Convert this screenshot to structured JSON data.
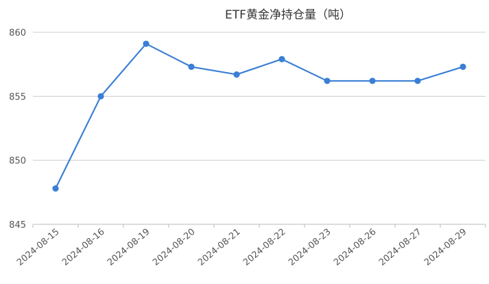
{
  "chart_data": {
    "type": "line",
    "title": "ETF黄金净持仓量（吨）",
    "xlabel": "",
    "ylabel": "",
    "categories": [
      "2024-08-15",
      "2024-08-16",
      "2024-08-19",
      "2024-08-20",
      "2024-08-21",
      "2024-08-22",
      "2024-08-23",
      "2024-08-26",
      "2024-08-27",
      "2024-08-29"
    ],
    "series": [
      {
        "values": [
          847.8,
          855.0,
          859.1,
          857.3,
          856.7,
          857.9,
          856.2,
          856.2,
          856.2,
          857.3
        ]
      }
    ],
    "ylim": [
      845,
      860
    ],
    "yticks": [
      "845",
      "850",
      "855",
      "860"
    ],
    "grid": true,
    "legend": "none",
    "colors": {
      "line": "#3a7fd5",
      "grid": "#cccccc",
      "axis": "#bbbbbb"
    }
  }
}
